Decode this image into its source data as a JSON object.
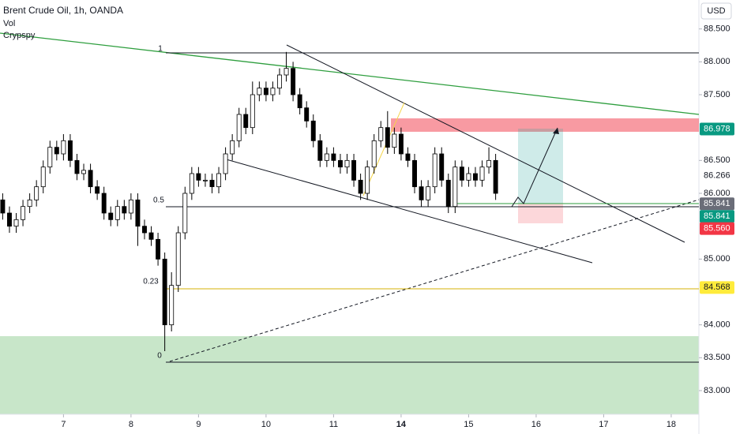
{
  "chart_data": {
    "type": "candlestick",
    "title": "Brent Crude Oil, 1h, OANDA",
    "indicators": [
      "Vol",
      "Crypspy"
    ],
    "currency": "USD",
    "up_color": "#ffffff",
    "down_color": "#000000",
    "outline_color": "#000000",
    "x": [
      6.1,
      6.2,
      6.3,
      6.4,
      6.5,
      6.6,
      6.7,
      6.8,
      6.9,
      7.0,
      7.1,
      7.2,
      7.3,
      7.4,
      7.5,
      7.6,
      7.7,
      7.8,
      7.9,
      8.0,
      8.1,
      8.2,
      8.3,
      8.4,
      8.5,
      8.6,
      8.7,
      8.8,
      8.9,
      9.0,
      9.1,
      9.2,
      9.3,
      9.4,
      9.5,
      9.6,
      9.7,
      9.8,
      9.9,
      10.0,
      10.1,
      10.2,
      10.3,
      10.4,
      10.5,
      10.6,
      10.7,
      10.8,
      10.9,
      11.0,
      11.1,
      11.2,
      11.3,
      11.4,
      11.5,
      11.6,
      11.7,
      11.8,
      11.9,
      12.0,
      12.1,
      12.2,
      12.3,
      12.4,
      12.5,
      12.6,
      12.7,
      12.8,
      12.9,
      13.0,
      13.1,
      13.2,
      13.3,
      13.4
    ],
    "open": [
      85.9,
      85.7,
      85.5,
      85.6,
      85.8,
      85.9,
      86.1,
      86.4,
      86.7,
      86.6,
      86.8,
      86.5,
      86.3,
      86.35,
      86.1,
      86.0,
      85.7,
      85.6,
      85.8,
      85.7,
      85.9,
      85.5,
      85.4,
      85.3,
      85.0,
      84.0,
      84.6,
      85.4,
      86.0,
      86.3,
      86.2,
      86.2,
      86.1,
      86.3,
      86.6,
      86.8,
      87.2,
      87.0,
      87.5,
      87.6,
      87.5,
      87.6,
      87.8,
      87.9,
      87.5,
      87.3,
      87.1,
      86.8,
      86.5,
      86.6,
      86.5,
      86.4,
      86.5,
      86.2,
      86.0,
      86.4,
      86.8,
      87.0,
      86.7,
      86.9,
      86.6,
      86.5,
      86.1,
      85.9,
      86.1,
      86.6,
      86.2,
      85.8,
      86.4,
      86.2,
      86.3,
      86.2,
      86.4,
      86.5
    ],
    "high": [
      86.0,
      85.8,
      85.7,
      85.9,
      86.0,
      86.2,
      86.5,
      86.8,
      86.8,
      86.9,
      86.9,
      86.6,
      86.45,
      86.45,
      86.2,
      86.1,
      85.8,
      85.9,
      85.9,
      86.0,
      86.0,
      85.6,
      85.5,
      85.4,
      85.1,
      84.8,
      85.5,
      86.1,
      86.4,
      86.4,
      86.3,
      86.3,
      86.4,
      86.7,
      86.9,
      87.3,
      87.3,
      87.7,
      87.7,
      87.7,
      87.7,
      87.9,
      88.15,
      88.0,
      87.6,
      87.4,
      87.2,
      86.9,
      86.7,
      86.7,
      86.6,
      86.6,
      86.6,
      86.3,
      86.5,
      86.9,
      87.1,
      87.25,
      87.0,
      87.0,
      86.7,
      86.6,
      86.2,
      86.2,
      86.7,
      86.7,
      86.3,
      86.5,
      86.5,
      86.4,
      86.4,
      86.5,
      86.7,
      86.6
    ],
    "low": [
      85.6,
      85.4,
      85.4,
      85.5,
      85.7,
      85.8,
      86.0,
      86.3,
      86.5,
      86.5,
      86.4,
      86.2,
      86.2,
      86.0,
      85.9,
      85.6,
      85.5,
      85.5,
      85.6,
      85.6,
      85.2,
      85.3,
      85.2,
      84.9,
      83.6,
      83.9,
      84.5,
      85.3,
      85.9,
      86.1,
      86.1,
      86.0,
      86.0,
      86.2,
      86.5,
      86.7,
      86.9,
      86.9,
      87.4,
      87.4,
      87.4,
      87.5,
      87.7,
      87.4,
      87.2,
      87.0,
      86.7,
      86.4,
      86.4,
      86.4,
      86.3,
      86.3,
      86.1,
      85.9,
      85.9,
      86.3,
      86.7,
      86.6,
      86.6,
      86.5,
      86.4,
      86.0,
      85.8,
      85.8,
      86.0,
      86.1,
      85.7,
      85.7,
      86.1,
      86.1,
      86.1,
      86.1,
      86.3,
      85.9
    ],
    "close": [
      85.7,
      85.5,
      85.6,
      85.8,
      85.9,
      86.1,
      86.4,
      86.7,
      86.6,
      86.8,
      86.5,
      86.3,
      86.35,
      86.1,
      86.0,
      85.7,
      85.6,
      85.8,
      85.7,
      85.9,
      85.5,
      85.4,
      85.3,
      85.0,
      84.0,
      84.6,
      85.4,
      86.0,
      86.3,
      86.2,
      86.2,
      86.1,
      86.3,
      86.6,
      86.8,
      87.2,
      87.0,
      87.5,
      87.6,
      87.5,
      87.6,
      87.8,
      87.9,
      87.5,
      87.3,
      87.1,
      86.8,
      86.5,
      86.6,
      86.5,
      86.4,
      86.5,
      86.2,
      86.0,
      86.4,
      86.8,
      87.0,
      86.7,
      86.9,
      86.6,
      86.5,
      86.1,
      85.9,
      86.1,
      86.6,
      86.2,
      85.8,
      86.4,
      86.2,
      86.3,
      86.2,
      86.4,
      86.5,
      86.0
    ],
    "xlim": [
      6.06,
      16.41
    ],
    "ylim": [
      82.64,
      88.94
    ],
    "xticks": [
      7,
      8,
      9,
      10,
      11,
      {
        "value": 12,
        "label": "14"
      },
      {
        "value": 13,
        "label": "15"
      },
      {
        "value": 14,
        "label": "16"
      },
      {
        "value": 15,
        "label": "17"
      },
      {
        "value": 16,
        "label": "18"
      }
    ],
    "yticks": [
      {
        "value": 83,
        "label": "83.000"
      },
      {
        "value": 83.5,
        "label": "83.500"
      },
      {
        "value": 84,
        "label": "84.000"
      },
      {
        "value": 85,
        "label": "85.000"
      },
      {
        "value": 86,
        "label": "86.000"
      },
      {
        "value": 86.5,
        "label": "86.500"
      },
      {
        "value": 87.5,
        "label": "87.500"
      },
      {
        "value": 88,
        "label": "88.000"
      },
      {
        "value": 88.5,
        "label": "88.500"
      }
    ],
    "fib_levels": [
      1,
      0.5,
      0.23,
      0
    ],
    "price_labels": [
      {
        "value": 86.978,
        "label": "86.978",
        "color": "#089981",
        "text_color": "#ffffff"
      },
      {
        "value": 86.266,
        "label": "86.266",
        "color": "none",
        "text_color": "#131722"
      },
      {
        "value": 85.841,
        "label": "85.841",
        "color": "#6a6d78",
        "text_color": "#ffffff"
      },
      {
        "value": 85.841,
        "label": "85.841",
        "color": "#089981",
        "text_color": "#ffffff"
      },
      {
        "value": 85.56,
        "label": "85.560",
        "color": "#f23645",
        "text_color": "#ffffff"
      },
      {
        "value": 84.568,
        "label": "84.568",
        "color": "#ffeb3b",
        "text_color": "#131722"
      }
    ]
  }
}
